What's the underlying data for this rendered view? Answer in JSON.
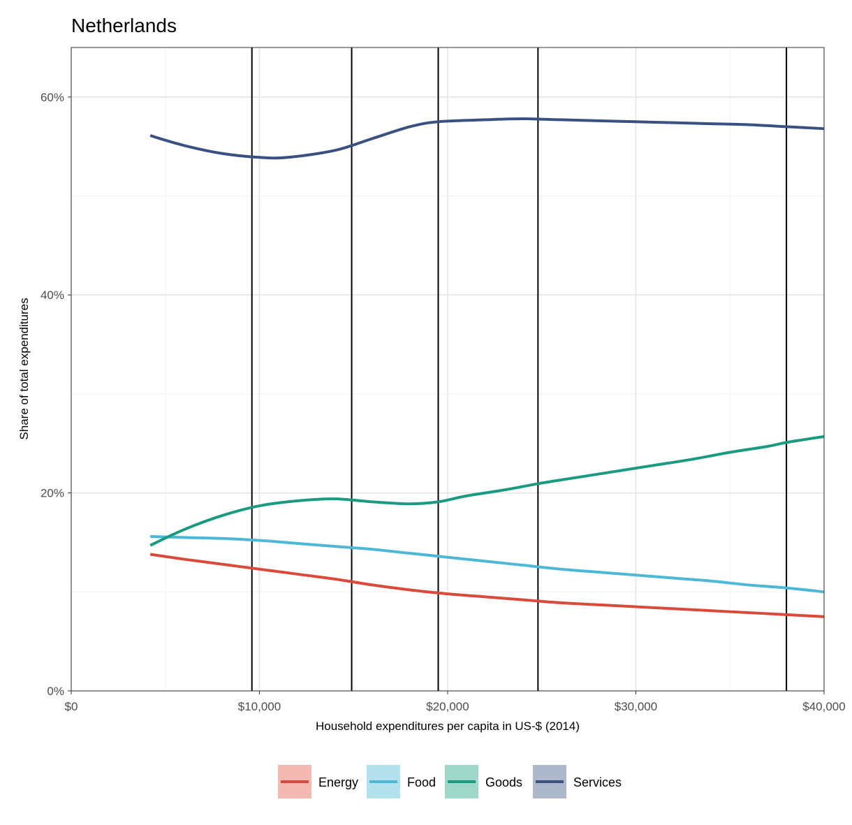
{
  "chart_data": {
    "type": "line",
    "title": "Netherlands",
    "xlabel": "Household expenditures per capita in US-$ (2014)",
    "ylabel": "Share of total expenditures",
    "xlim": [
      0,
      40000
    ],
    "ylim": [
      0,
      0.65
    ],
    "x_ticks": [
      0,
      10000,
      20000,
      30000,
      40000
    ],
    "x_tick_labels": [
      "$0",
      "$10,000",
      "$20,000",
      "$30,000",
      "$40,000"
    ],
    "y_ticks": [
      0,
      0.2,
      0.4,
      0.6
    ],
    "y_tick_labels": [
      "0%",
      "20%",
      "40%",
      "60%"
    ],
    "grid": true,
    "legend_position": "bottom",
    "vertical_lines": [
      9600,
      14900,
      19500,
      24800,
      38000
    ],
    "series": [
      {
        "name": "Energy",
        "color": "#d94a3a",
        "band_color": "#f4b9b0",
        "x": [
          4200,
          6000,
          8000,
          10000,
          12000,
          14000,
          16000,
          18000,
          20000,
          22000,
          24000,
          26000,
          28000,
          30000,
          32000,
          34000,
          36000,
          38000,
          40000
        ],
        "y": [
          0.138,
          0.133,
          0.128,
          0.123,
          0.118,
          0.113,
          0.107,
          0.102,
          0.098,
          0.095,
          0.092,
          0.089,
          0.087,
          0.085,
          0.083,
          0.081,
          0.079,
          0.077,
          0.075
        ]
      },
      {
        "name": "Food",
        "color": "#4db8d6",
        "band_color": "#b3e2ee",
        "x": [
          4200,
          6000,
          8000,
          10000,
          12000,
          14000,
          16000,
          18000,
          20000,
          22000,
          24000,
          26000,
          28000,
          30000,
          32000,
          34000,
          36000,
          38000,
          40000
        ],
        "y": [
          0.156,
          0.155,
          0.154,
          0.152,
          0.149,
          0.146,
          0.143,
          0.139,
          0.135,
          0.131,
          0.127,
          0.123,
          0.12,
          0.117,
          0.114,
          0.111,
          0.107,
          0.104,
          0.1
        ]
      },
      {
        "name": "Goods",
        "color": "#1a9a80",
        "band_color": "#9fd8c8",
        "x": [
          4200,
          6000,
          8000,
          10000,
          12000,
          14000,
          16000,
          18000,
          19500,
          21000,
          23000,
          25000,
          27000,
          29000,
          31000,
          33000,
          35000,
          37000,
          38000,
          40000
        ],
        "y": [
          0.147,
          0.163,
          0.177,
          0.187,
          0.192,
          0.194,
          0.191,
          0.189,
          0.191,
          0.197,
          0.203,
          0.21,
          0.216,
          0.222,
          0.228,
          0.234,
          0.241,
          0.247,
          0.251,
          0.257
        ]
      },
      {
        "name": "Services",
        "color": "#3a5080",
        "band_color": "#adb8cc",
        "x": [
          4200,
          6000,
          8000,
          10000,
          11500,
          14000,
          16000,
          18000,
          19500,
          22000,
          24000,
          26000,
          28000,
          30000,
          32000,
          34000,
          36000,
          38000,
          40000
        ],
        "y": [
          0.561,
          0.551,
          0.543,
          0.539,
          0.539,
          0.546,
          0.558,
          0.57,
          0.575,
          0.577,
          0.578,
          0.577,
          0.576,
          0.575,
          0.574,
          0.573,
          0.572,
          0.57,
          0.568
        ]
      }
    ]
  }
}
